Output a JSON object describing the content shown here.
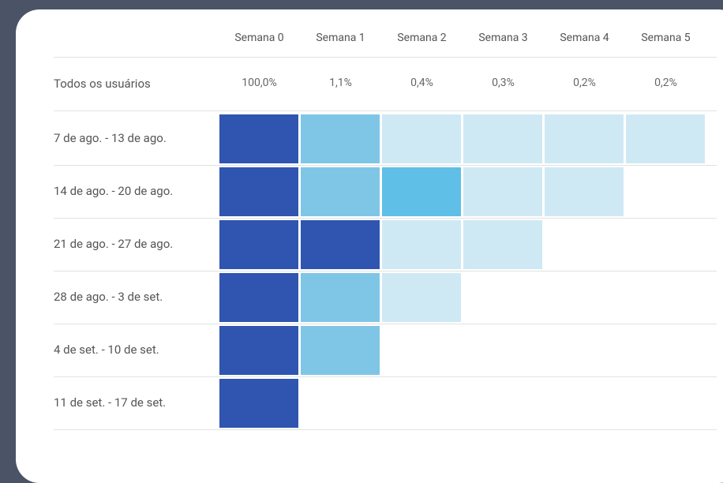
{
  "table": {
    "columns": [
      "Semana 0",
      "Semana 1",
      "Semana 2",
      "Semana 3",
      "Semana 4",
      "Semana 5"
    ],
    "total": {
      "label": "Todos os usuários",
      "values": [
        "100,0%",
        "1,1%",
        "0,4%",
        "0,3%",
        "0,2%",
        "0,2%"
      ]
    },
    "rows": [
      {
        "label": "7 de ago. - 13 de ago.",
        "colors": [
          "#2f55b0",
          "#7fc6e6",
          "#cfe9f4",
          "#cfe9f4",
          "#cfe9f4",
          "#cfe9f4"
        ]
      },
      {
        "label": "14 de ago. - 20 de ago.",
        "colors": [
          "#2f55b0",
          "#7fc6e6",
          "#5fbfe6",
          "#cfe9f4",
          "#cfe9f4"
        ]
      },
      {
        "label": "21 de ago. - 27 de ago.",
        "colors": [
          "#2f55b0",
          "#2f55b0",
          "#cfe9f4",
          "#cfe9f4"
        ]
      },
      {
        "label": "28 de ago. - 3 de set.",
        "colors": [
          "#2f55b0",
          "#7fc6e6",
          "#cfe9f4"
        ]
      },
      {
        "label": "4 de set. - 10 de set.",
        "colors": [
          "#2f55b0",
          "#7fc6e6"
        ]
      },
      {
        "label": "11 de set. - 17 de set.",
        "colors": [
          "#2f55b0"
        ]
      }
    ]
  }
}
